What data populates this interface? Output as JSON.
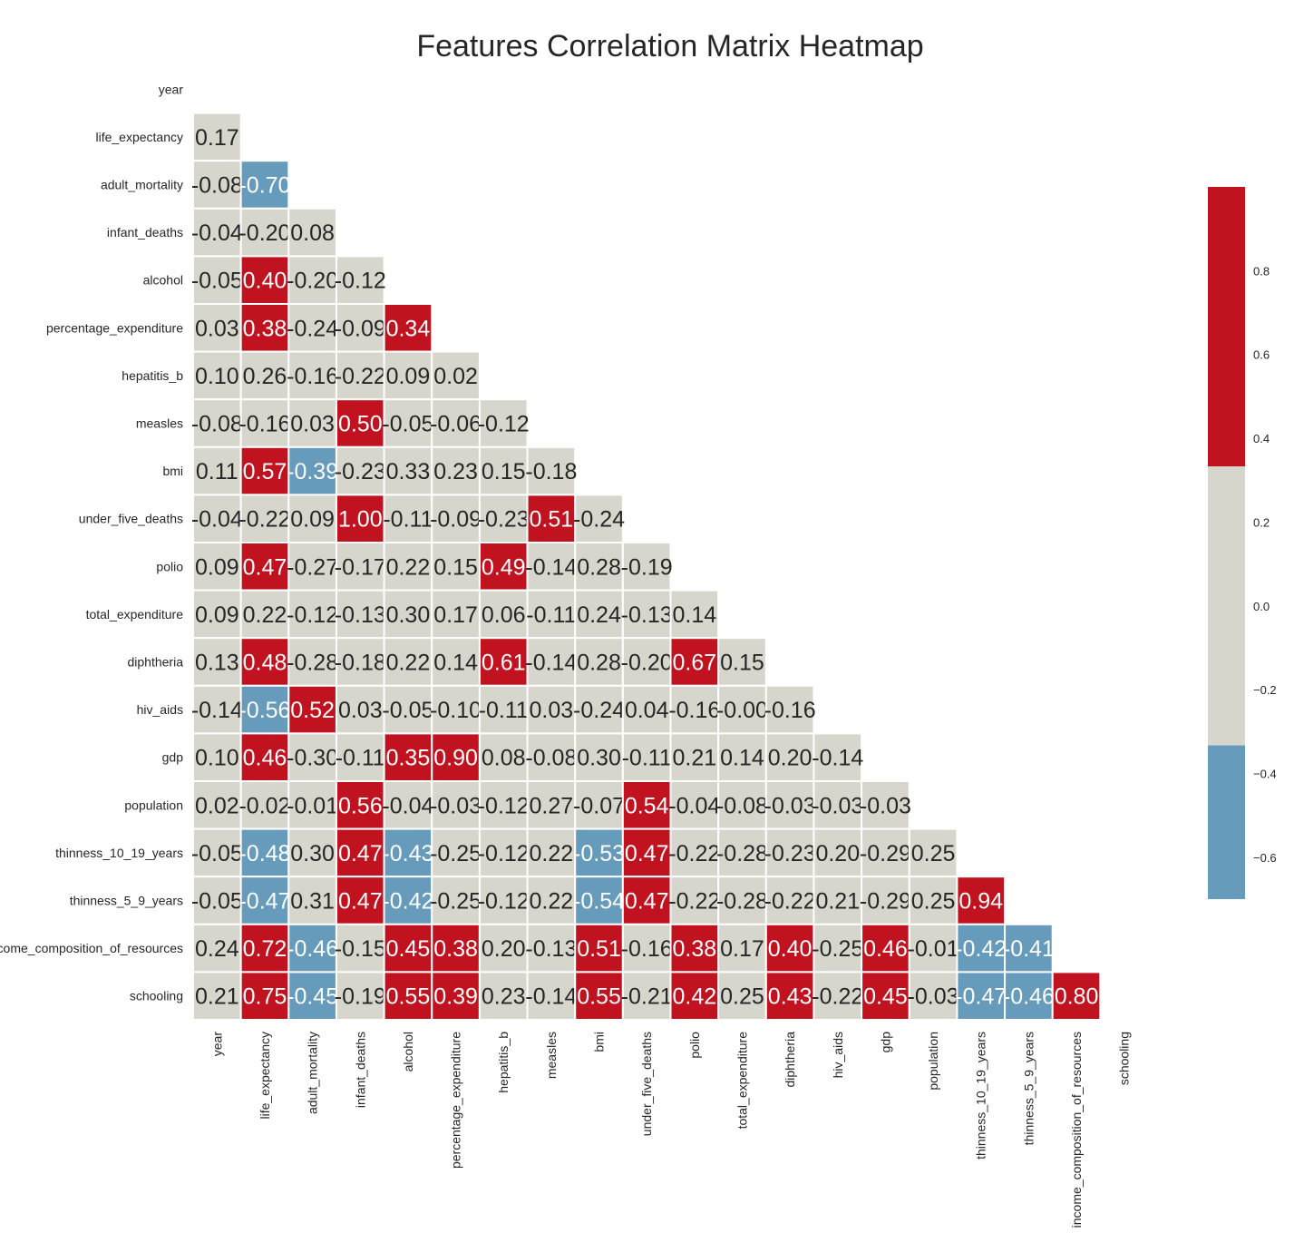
{
  "chart_data": {
    "type": "heatmap",
    "title": "Features Correlation Matrix Heatmap",
    "triangle": "lower",
    "value_format": "2 decimals",
    "labels": [
      "year",
      "life_expectancy",
      "adult_mortality",
      "infant_deaths",
      "alcohol",
      "percentage_expenditure",
      "hepatitis_b",
      "measles",
      "bmi",
      "under_five_deaths",
      "polio",
      "total_expenditure",
      "diphtheria",
      "hiv_aids",
      "gdp",
      "population",
      "thinness_10_19_years",
      "thinness_5_9_years",
      "income_composition_of_resources",
      "schooling"
    ],
    "rows": [
      [],
      [
        "0.17"
      ],
      [
        "-0.08",
        "-0.70"
      ],
      [
        "-0.04",
        "-0.20",
        "0.08"
      ],
      [
        "-0.05",
        "0.40",
        "-0.20",
        "-0.12"
      ],
      [
        "0.03",
        "0.38",
        "-0.24",
        "-0.09",
        "0.34"
      ],
      [
        "0.10",
        "0.26",
        "-0.16",
        "-0.22",
        "0.09",
        "0.02"
      ],
      [
        "-0.08",
        "-0.16",
        "0.03",
        "0.50",
        "-0.05",
        "-0.06",
        "-0.12"
      ],
      [
        "0.11",
        "0.57",
        "-0.39",
        "-0.23",
        "0.33",
        "0.23",
        "0.15",
        "-0.18"
      ],
      [
        "-0.04",
        "-0.22",
        "0.09",
        "1.00",
        "-0.11",
        "-0.09",
        "-0.23",
        "0.51",
        "-0.24"
      ],
      [
        "0.09",
        "0.47",
        "-0.27",
        "-0.17",
        "0.22",
        "0.15",
        "0.49",
        "-0.14",
        "0.28",
        "-0.19"
      ],
      [
        "0.09",
        "0.22",
        "-0.12",
        "-0.13",
        "0.30",
        "0.17",
        "0.06",
        "-0.11",
        "0.24",
        "-0.13",
        "0.14"
      ],
      [
        "0.13",
        "0.48",
        "-0.28",
        "-0.18",
        "0.22",
        "0.14",
        "0.61",
        "-0.14",
        "0.28",
        "-0.20",
        "0.67",
        "0.15"
      ],
      [
        "-0.14",
        "-0.56",
        "0.52",
        "0.03",
        "-0.05",
        "-0.10",
        "-0.11",
        "0.03",
        "-0.24",
        "0.04",
        "-0.16",
        "-0.00",
        "-0.16"
      ],
      [
        "0.10",
        "0.46",
        "-0.30",
        "-0.11",
        "0.35",
        "0.90",
        "0.08",
        "-0.08",
        "0.30",
        "-0.11",
        "0.21",
        "0.14",
        "0.20",
        "-0.14"
      ],
      [
        "0.02",
        "-0.02",
        "-0.01",
        "0.56",
        "-0.04",
        "-0.03",
        "-0.12",
        "0.27",
        "-0.07",
        "0.54",
        "-0.04",
        "-0.08",
        "-0.03",
        "-0.03",
        "-0.03"
      ],
      [
        "-0.05",
        "-0.48",
        "0.30",
        "0.47",
        "-0.43",
        "-0.25",
        "-0.12",
        "0.22",
        "-0.53",
        "0.47",
        "-0.22",
        "-0.28",
        "-0.23",
        "0.20",
        "-0.29",
        "0.25"
      ],
      [
        "-0.05",
        "-0.47",
        "0.31",
        "0.47",
        "-0.42",
        "-0.25",
        "-0.12",
        "0.22",
        "-0.54",
        "0.47",
        "-0.22",
        "-0.28",
        "-0.22",
        "0.21",
        "-0.29",
        "0.25",
        "0.94"
      ],
      [
        "0.24",
        "0.72",
        "-0.46",
        "-0.15",
        "0.45",
        "0.38",
        "0.20",
        "-0.13",
        "0.51",
        "-0.16",
        "0.38",
        "0.17",
        "0.40",
        "-0.25",
        "0.46",
        "-0.01",
        "-0.42",
        "-0.41"
      ],
      [
        "0.21",
        "0.75",
        "-0.45",
        "-0.19",
        "0.55",
        "0.39",
        "0.23",
        "-0.14",
        "0.55",
        "-0.21",
        "0.42",
        "0.25",
        "0.43",
        "-0.22",
        "0.45",
        "-0.03",
        "-0.47",
        "-0.46",
        "0.80"
      ]
    ],
    "color_bins": [
      {
        "min": -1.0,
        "max": -0.333,
        "color": "#669bbc",
        "text_color": "#ffffff"
      },
      {
        "min": -0.333,
        "max": 0.333,
        "color": "#d6d6cc",
        "text_color": "#262626"
      },
      {
        "min": 0.333,
        "max": 1.0,
        "color": "#c1121f",
        "text_color": "#ffffff"
      }
    ],
    "colorbar": {
      "range": [
        -0.7,
        1.0
      ],
      "ticks": [
        -0.6,
        -0.4,
        -0.2,
        0.0,
        0.2,
        0.4,
        0.6,
        0.8
      ],
      "tick_labels": [
        "−0.6",
        "−0.4",
        "−0.2",
        "0.0",
        "0.2",
        "0.4",
        "0.6",
        "0.8"
      ],
      "position": "right"
    },
    "grid_line_color": "#ffffff"
  }
}
